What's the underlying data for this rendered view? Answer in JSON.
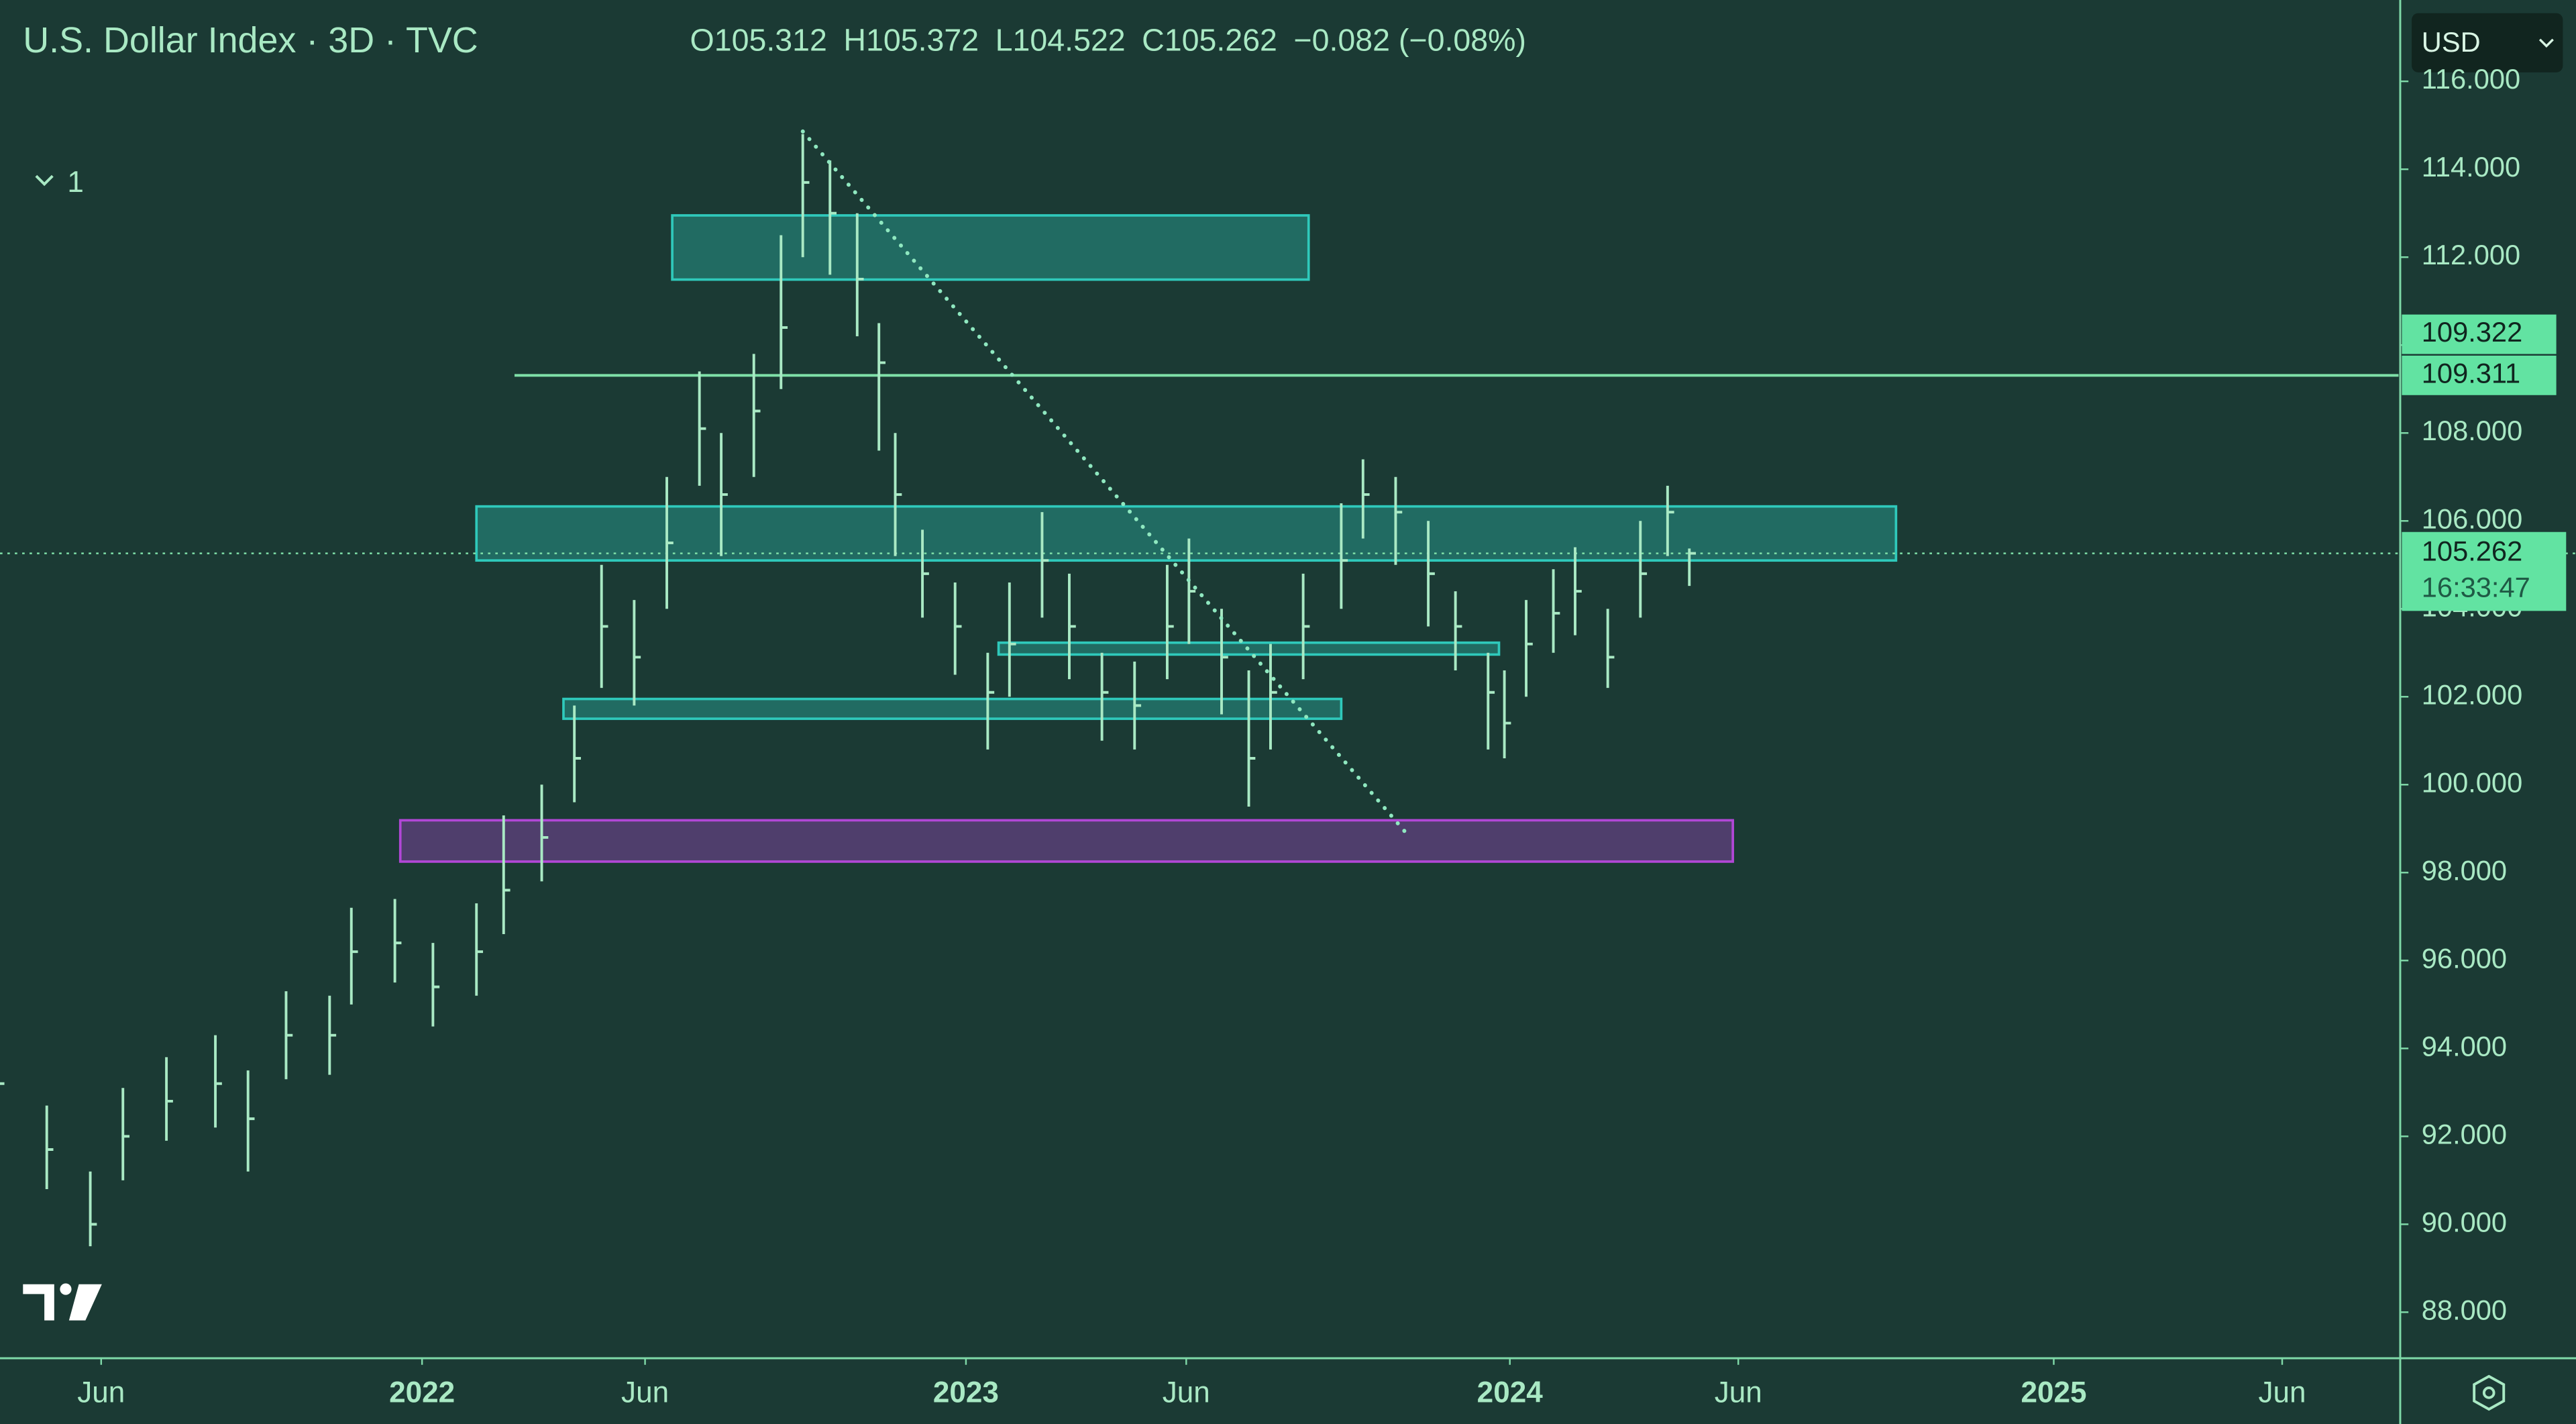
{
  "chart_data": {
    "type": "ohlc",
    "title": "U.S. Dollar Index · 3D · TVC",
    "header": [
      {
        "label": "O",
        "value": 105.312
      },
      {
        "label": "H",
        "value": 105.372
      },
      {
        "label": "L",
        "value": 104.522
      },
      {
        "label": "C",
        "value": 105.262
      }
    ],
    "change": "−0.082 (−0.08%)",
    "indicator_toggle": "1",
    "currency": "USD",
    "color": "#a9e9c4",
    "x": [
      2021.22,
      2021.31,
      2021.39,
      2021.45,
      2021.53,
      2021.62,
      2021.68,
      2021.75,
      2021.83,
      2021.87,
      2021.95,
      2022.02,
      2022.1,
      2022.15,
      2022.22,
      2022.28,
      2022.33,
      2022.39,
      2022.45,
      2022.51,
      2022.55,
      2022.61,
      2022.66,
      2022.7,
      2022.75,
      2022.8,
      2022.84,
      2022.87,
      2022.92,
      2022.98,
      2023.04,
      2023.08,
      2023.14,
      2023.19,
      2023.25,
      2023.31,
      2023.37,
      2023.41,
      2023.47,
      2023.52,
      2023.56,
      2023.62,
      2023.69,
      2023.73,
      2023.79,
      2023.85,
      2023.9,
      2023.96,
      2023.99,
      2024.03,
      2024.08,
      2024.12,
      2024.18,
      2024.24,
      2024.29,
      2024.33
    ],
    "high": [
      94.2,
      92.7,
      91.2,
      93.1,
      93.8,
      94.3,
      93.5,
      95.3,
      95.2,
      97.2,
      97.4,
      96.4,
      97.3,
      99.3,
      100.0,
      101.8,
      105.0,
      104.2,
      107.0,
      109.4,
      108.0,
      109.8,
      112.5,
      114.8,
      114.2,
      113.0,
      110.5,
      108.0,
      105.8,
      104.6,
      103.0,
      104.6,
      106.2,
      104.8,
      103.0,
      102.8,
      105.0,
      105.6,
      104.0,
      102.6,
      103.2,
      104.8,
      106.4,
      107.4,
      107.0,
      106.0,
      104.4,
      103.0,
      102.6,
      104.2,
      104.9,
      105.4,
      104.0,
      106.0,
      106.8,
      105.372
    ],
    "low": [
      92.4,
      90.8,
      89.5,
      91.0,
      91.9,
      92.2,
      91.2,
      93.3,
      93.4,
      95.0,
      95.5,
      94.5,
      95.2,
      96.6,
      97.8,
      99.6,
      102.2,
      101.8,
      104.0,
      106.8,
      105.2,
      107.0,
      109.0,
      112.0,
      111.6,
      110.2,
      107.6,
      105.2,
      103.8,
      102.5,
      100.8,
      102.0,
      103.8,
      102.4,
      101.0,
      100.8,
      102.4,
      103.2,
      101.6,
      99.5,
      100.8,
      102.4,
      104.0,
      105.6,
      105.0,
      103.6,
      102.6,
      100.8,
      100.6,
      102.0,
      103.0,
      103.4,
      102.2,
      103.8,
      105.2,
      104.522
    ],
    "close": [
      93.2,
      91.7,
      90.0,
      92,
      92.8,
      93.2,
      92.4,
      94.3,
      94.3,
      96.2,
      96.4,
      95.4,
      96.2,
      97.6,
      98.8,
      100.6,
      103.6,
      102.9,
      105.5,
      108.1,
      106.6,
      108.5,
      110.4,
      113.7,
      113,
      111.5,
      109.6,
      106.6,
      104.8,
      103.6,
      102.1,
      103.2,
      105.1,
      103.6,
      102.1,
      101.8,
      103.6,
      104.4,
      102.9,
      100.6,
      102.1,
      103.6,
      105.1,
      106.6,
      106.2,
      104.8,
      103.6,
      102.1,
      101.4,
      103.2,
      103.9,
      104.4,
      102.9,
      104.8,
      106.2,
      105.262
    ],
    "xlim": [
      2021.224,
      2025.634
    ],
    "ylim": [
      86.99,
      117.85
    ],
    "xticks": [
      {
        "value": 2021.41,
        "label": "Jun"
      },
      2022,
      {
        "value": 2022.41,
        "label": "Jun"
      },
      2023,
      {
        "value": 2023.405,
        "label": "Jun"
      },
      2024,
      {
        "value": 2024.42,
        "label": "Jun"
      },
      2025,
      {
        "value": 2025.42,
        "label": "Jun"
      }
    ],
    "yticks": [
      {
        "value": 88,
        "label": "88.000"
      },
      {
        "value": 90,
        "label": "90.000"
      },
      {
        "value": 92,
        "label": "92.000"
      },
      {
        "value": 94,
        "label": "94.000"
      },
      {
        "value": 96,
        "label": "96.000"
      },
      {
        "value": 98,
        "label": "98.000"
      },
      {
        "value": 100,
        "label": "100.000"
      },
      {
        "value": 102,
        "label": "102.000"
      },
      {
        "value": 104,
        "label": "104.000"
      },
      {
        "value": 106,
        "label": "106.000"
      },
      {
        "value": 108,
        "label": "108.000"
      },
      {
        "value": 110,
        "label": "110.000"
      },
      {
        "value": 112,
        "label": "112.000"
      },
      {
        "value": 114,
        "label": "114.000"
      },
      {
        "value": 116,
        "label": "116.000"
      }
    ],
    "zones": [
      {
        "x": [
          2022.46,
          2023.63
        ],
        "y": [
          111.49,
          112.95
        ],
        "color": "#2fc9bb"
      },
      {
        "x": [
          2022.1,
          2024.71
        ],
        "y": [
          105.1,
          106.33
        ],
        "color": "#2fc9bb"
      },
      {
        "x": [
          2023.06,
          2023.98
        ],
        "y": [
          102.96,
          103.23
        ],
        "color": "#2fc9bb"
      },
      {
        "x": [
          2022.26,
          2023.69
        ],
        "y": [
          101.5,
          101.95
        ],
        "color": "#2fc9bb"
      },
      {
        "x": [
          2021.96,
          2024.41
        ],
        "y": [
          98.25,
          99.19
        ],
        "color": "#b147d6"
      }
    ],
    "hline": {
      "value": 109.311,
      "x": 2022.17
    },
    "trendline": {
      "x": [
        2022.7,
        2023.81
      ],
      "y": [
        114.86,
        98.89
      ]
    },
    "price_labels": [
      109.322,
      109.311
    ],
    "last_price": 105.262,
    "countdown": "16:33:47"
  }
}
